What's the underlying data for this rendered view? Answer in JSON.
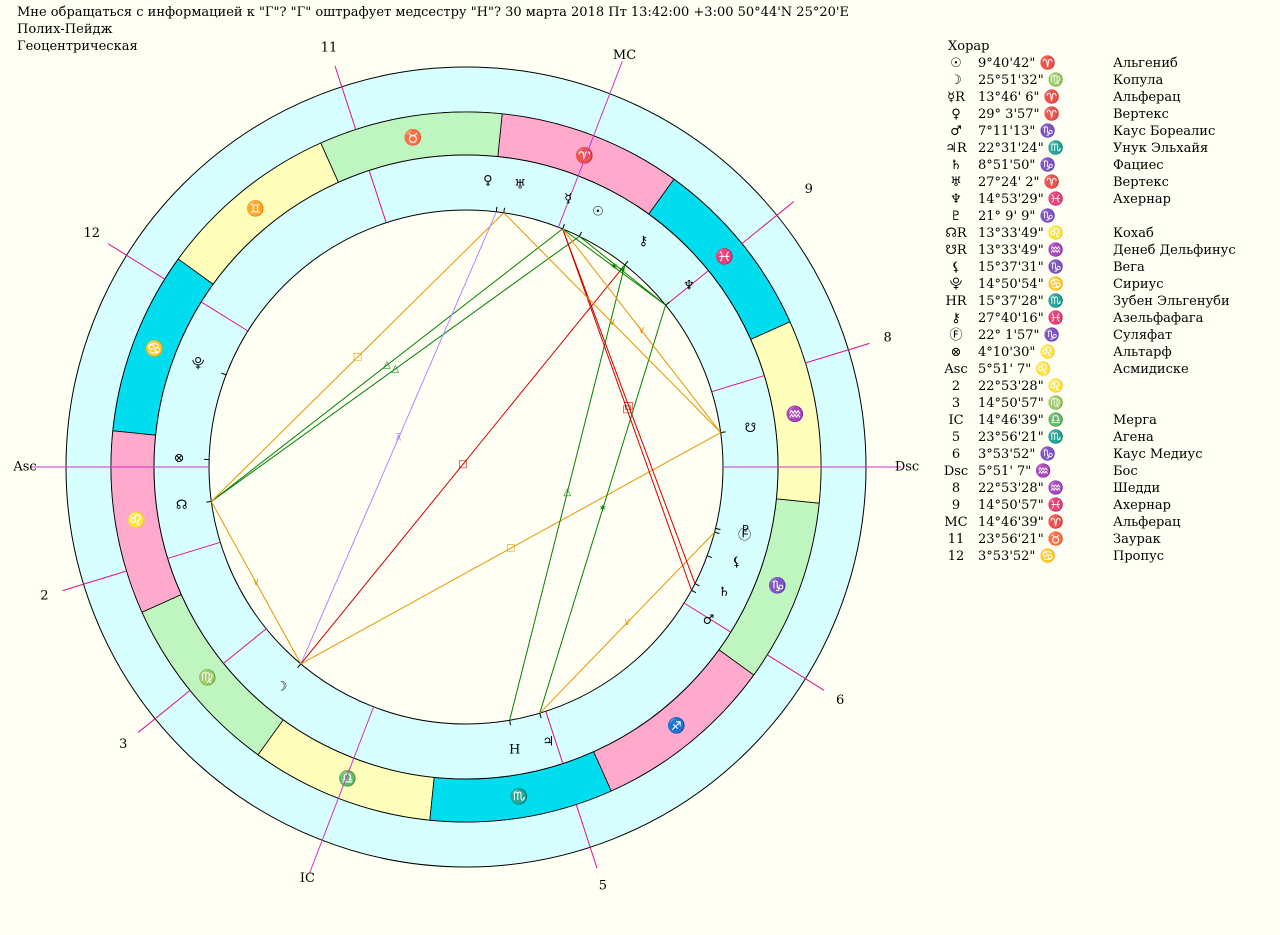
{
  "header": {
    "line1": "Мне обращаться с информацией к \"Г\"? \"Г\" оштрафует медсестру \"Н\"?  30 марта 2018  Пт  13:42:00 +3:00 50°44'N  25°20'E",
    "line2": "Полих-Пейдж",
    "line3": "Геоцентрическая"
  },
  "table": {
    "title": "Хорар",
    "rows": [
      {
        "sym": "☉",
        "pos": "9°40'42\" ♈",
        "star": "Альгениб"
      },
      {
        "sym": "☽",
        "pos": "25°51'32\" ♍",
        "star": "Копула"
      },
      {
        "sym": "☿R",
        "pos": "13°46' 6\" ♈",
        "star": "Альферац"
      },
      {
        "sym": "♀",
        "pos": "29° 3'57\" ♈",
        "star": "Вертекс"
      },
      {
        "sym": "♂",
        "pos": "7°11'13\" ♑",
        "star": "Каус Бореалис"
      },
      {
        "sym": "♃R",
        "pos": "22°31'24\" ♏",
        "star": "Унук Эльхайя"
      },
      {
        "sym": "♄",
        "pos": "8°51'50\" ♑",
        "star": "Фациес"
      },
      {
        "sym": "♅",
        "pos": "27°24' 2\" ♈",
        "star": "Вертекс"
      },
      {
        "sym": "♆",
        "pos": "14°53'29\" ♓",
        "star": "Ахернар"
      },
      {
        "sym": "♇",
        "pos": "21° 9' 9\" ♑",
        "star": ""
      },
      {
        "sym": "☊R",
        "pos": "13°33'49\" ♌",
        "star": "Кохаб"
      },
      {
        "sym": "☋R",
        "pos": "13°33'49\" ♒",
        "star": "Денеб Дельфинус"
      },
      {
        "sym": "⚸",
        "pos": "15°37'31\" ♑",
        "star": "Вега"
      },
      {
        "sym": "⯓",
        "pos": "14°50'54\" ♋",
        "star": "Сириус"
      },
      {
        "sym": "HR",
        "pos": "15°37'28\" ♏",
        "star": "Зубен Эльгенуби"
      },
      {
        "sym": "⚷",
        "pos": "27°40'16\" ♓",
        "star": "Азельфафага"
      },
      {
        "sym": "Ⓕ",
        "pos": "22° 1'57\" ♑",
        "star": "Суляфат"
      },
      {
        "sym": "⊗",
        "pos": "4°10'30\" ♌",
        "star": "Альтарф"
      },
      {
        "sym": "Asc",
        "pos": "5°51' 7\" ♌",
        "star": "Асмидиске"
      },
      {
        "sym": "2",
        "pos": "22°53'28\" ♌",
        "star": ""
      },
      {
        "sym": "3",
        "pos": "14°50'57\" ♍",
        "star": ""
      },
      {
        "sym": "IC",
        "pos": "14°46'39\" ♎",
        "star": "Мерга"
      },
      {
        "sym": "5",
        "pos": "23°56'21\" ♏",
        "star": "Агена"
      },
      {
        "sym": "6",
        "pos": "3°53'52\" ♑",
        "star": "Каус Медиус"
      },
      {
        "sym": "Dsc",
        "pos": "5°51' 7\" ♒",
        "star": "Бос"
      },
      {
        "sym": "8",
        "pos": "22°53'28\" ♒",
        "star": "Шедди"
      },
      {
        "sym": "9",
        "pos": "14°50'57\" ♓",
        "star": "Ахернар"
      },
      {
        "sym": "MC",
        "pos": "14°46'39\" ♈",
        "star": "Альферац"
      },
      {
        "sym": "11",
        "pos": "23°56'21\" ♉",
        "star": "Заурак"
      },
      {
        "sym": "12",
        "pos": "3°53'52\" ♋",
        "star": "Пропус"
      }
    ]
  },
  "wheel": {
    "asc_longitude": 125.85,
    "cusps": [
      {
        "label": "Asc",
        "lon": 125.85,
        "angle": true
      },
      {
        "label": "2",
        "lon": 142.89
      },
      {
        "label": "3",
        "lon": 164.85
      },
      {
        "label": "IC",
        "lon": 194.78,
        "angle": true
      },
      {
        "label": "5",
        "lon": 233.94
      },
      {
        "label": "6",
        "lon": 273.9
      },
      {
        "label": "Dsc",
        "lon": 305.85,
        "angle": true
      },
      {
        "label": "8",
        "lon": 322.89
      },
      {
        "label": "9",
        "lon": 344.85
      },
      {
        "label": "MC",
        "lon": 14.78,
        "angle": true
      },
      {
        "label": "11",
        "lon": 53.94
      },
      {
        "label": "12",
        "lon": 93.9
      }
    ],
    "signs": [
      {
        "glyph": "♈",
        "color": "#ff00ff"
      },
      {
        "glyph": "♉",
        "color": "#008000"
      },
      {
        "glyph": "♊",
        "color": "#996600"
      },
      {
        "glyph": "♋",
        "color": "#0000ff"
      },
      {
        "glyph": "♌",
        "color": "#ff00ff"
      },
      {
        "glyph": "♍",
        "color": "#008000"
      },
      {
        "glyph": "♎",
        "color": "#996600"
      },
      {
        "glyph": "♏",
        "color": "#0000ff"
      },
      {
        "glyph": "♐",
        "color": "#ff00ff"
      },
      {
        "glyph": "♑",
        "color": "#008000"
      },
      {
        "glyph": "♒",
        "color": "#996600"
      },
      {
        "glyph": "♓",
        "color": "#0000ff"
      }
    ],
    "sign_fills": [
      "#ffaacc",
      "#bff5bf",
      "#ffffbb",
      "#00ddee",
      "#ffaacc",
      "#bff5bf",
      "#ffffbb",
      "#00ddee",
      "#ffaacc",
      "#bff5bf",
      "#ffffbb",
      "#00ddee"
    ],
    "planets": [
      {
        "id": "sun",
        "glyph": "☉",
        "lon": 9.68
      },
      {
        "id": "moon",
        "glyph": "☽",
        "lon": 175.86
      },
      {
        "id": "mercury",
        "glyph": "☿",
        "lon": 13.77
      },
      {
        "id": "venus",
        "glyph": "♀",
        "lon": 29.07
      },
      {
        "id": "mars",
        "glyph": "♂",
        "lon": 277.19
      },
      {
        "id": "jupiter",
        "glyph": "♃",
        "lon": 232.52
      },
      {
        "id": "saturn",
        "glyph": "♄",
        "lon": 278.86
      },
      {
        "id": "uranus",
        "glyph": "♅",
        "lon": 27.4
      },
      {
        "id": "neptune",
        "glyph": "♆",
        "lon": 344.89
      },
      {
        "id": "pluto",
        "glyph": "♇",
        "lon": 291.15
      },
      {
        "id": "north-node",
        "glyph": "☊",
        "lon": 133.56
      },
      {
        "id": "south-node",
        "glyph": "☋",
        "lon": 313.56
      },
      {
        "id": "lilith",
        "glyph": "⚸",
        "lon": 285.63
      },
      {
        "id": "sirius-point",
        "glyph": "⯓",
        "lon": 104.85
      },
      {
        "id": "h-point",
        "glyph": "H",
        "lon": 225.62
      },
      {
        "id": "chiron",
        "glyph": "⚷",
        "lon": 357.67
      },
      {
        "id": "fortuna-f",
        "glyph": "Ⓕ",
        "lon": 292.03
      },
      {
        "id": "fortune",
        "glyph": "⊗",
        "lon": 124.18
      }
    ],
    "aspects": [
      {
        "a": "north-node",
        "b": "mercury",
        "type": "trine",
        "color": "#008000"
      },
      {
        "a": "north-node",
        "b": "sun",
        "type": "trine",
        "color": "#008000"
      },
      {
        "a": "north-node",
        "b": "uranus",
        "type": "square",
        "color": "#e69500"
      },
      {
        "a": "north-node",
        "b": "moon",
        "type": "semisextile",
        "color": "#e69500"
      },
      {
        "a": "moon",
        "b": "venus",
        "type": "quincunx",
        "color": "#b088ff"
      },
      {
        "a": "moon",
        "b": "chiron",
        "type": "opposition",
        "color": "#cc0000"
      },
      {
        "a": "moon",
        "b": "south-node",
        "type": "square",
        "color": "#e69500"
      },
      {
        "a": "h-point",
        "b": "chiron",
        "type": "trine",
        "color": "#008000"
      },
      {
        "a": "jupiter",
        "b": "neptune",
        "type": "sextile",
        "color": "#008000"
      },
      {
        "a": "jupiter",
        "b": "pluto",
        "type": "semisextile",
        "color": "#e69500"
      },
      {
        "a": "mercury",
        "b": "mars",
        "type": "square",
        "color": "#cc0000"
      },
      {
        "a": "mercury",
        "b": "saturn",
        "type": "square",
        "color": "#cc0000"
      },
      {
        "a": "mercury",
        "b": "neptune",
        "type": "sextile",
        "color": "#008000"
      },
      {
        "a": "sun",
        "b": "neptune",
        "type": "sextile",
        "color": "#008000"
      },
      {
        "a": "mercury",
        "b": "south-node",
        "type": "semisextile",
        "color": "#e69500"
      },
      {
        "a": "uranus",
        "b": "south-node",
        "type": "semisextile",
        "color": "#e69500"
      }
    ]
  }
}
